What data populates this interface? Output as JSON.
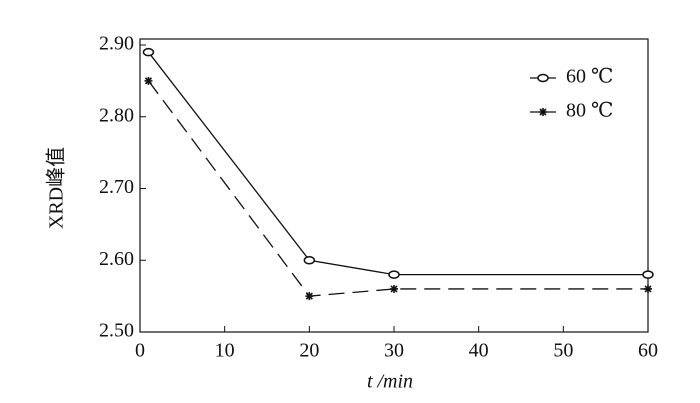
{
  "chart_data": {
    "type": "line",
    "xlabel": "t /min",
    "ylabel": "XRD峰值",
    "x": [
      1,
      20,
      30,
      60
    ],
    "series": [
      {
        "name": "60 ℃",
        "color": "#111111",
        "marker": "circle",
        "dash": false,
        "values": [
          2.89,
          2.6,
          2.58,
          2.58
        ]
      },
      {
        "name": "80 ℃",
        "color": "#111111",
        "marker": "star",
        "dash": true,
        "values": [
          2.85,
          2.55,
          2.56,
          2.56
        ]
      }
    ],
    "xlim": [
      0,
      60
    ],
    "xticks": [
      0,
      10,
      20,
      30,
      40,
      50,
      60
    ],
    "ylim": [
      2.5,
      2.9
    ],
    "yticks": [
      {
        "value": 2.5,
        "label": "2.50"
      },
      {
        "value": 2.6,
        "label": "2.60"
      },
      {
        "value": 2.7,
        "label": "2.70"
      },
      {
        "value": 2.8,
        "label": "2.80"
      },
      {
        "value": 2.9,
        "label": "2.90"
      }
    ],
    "legend": "upper right"
  }
}
